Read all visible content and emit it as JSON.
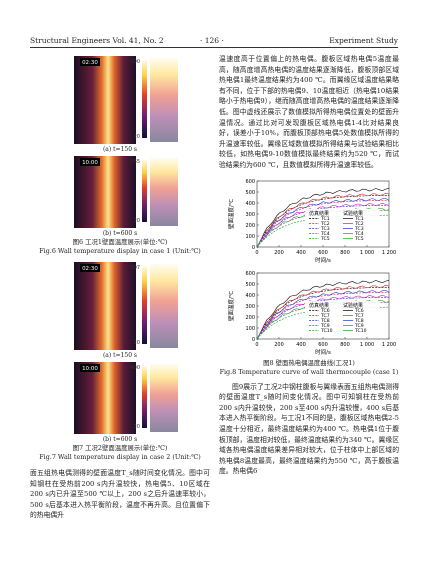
{
  "header": {
    "journal": "Structural Engineers  Vol. 41, No. 2",
    "page": "· 126 ·",
    "section": "Experiment Study"
  },
  "figure6": {
    "panels": [
      {
        "timestamp": "02:30",
        "scale_max": "300",
        "scale_min": "20",
        "caption": "(a) t=150 s"
      },
      {
        "timestamp": "10:00",
        "scale_max": "565",
        "scale_min": "20",
        "caption": "(b) t=600 s"
      }
    ],
    "caption_zh": "图6  工况1壁面温度展示(单位:℃)",
    "caption_en": "Fig.6  Wall temperature display in case 1 (Unit:℃)"
  },
  "figure7": {
    "panels": [
      {
        "timestamp": "02:30",
        "scale_max": "307",
        "scale_min": "20",
        "caption": "(a) t=150 s"
      },
      {
        "timestamp": "10:00",
        "scale_max": "400",
        "scale_min": "20",
        "caption": "(b) t=600 s"
      }
    ],
    "caption_zh": "图7  工况2壁面温度展示(单位:℃)",
    "caption_en": "Fig.7  Wall temperature display in case 2 (Unit:℃)"
  },
  "left_text": "面五组热电偶测得的壁面温度T_s随时间变化情况。图中可知钢柱在受热前200 s内升温较快，热电偶5、10区域在200 s内已升温至500 ℃以上，200 s之后升温速率较小，500 s后基本进入热平衡阶段，温度不再升高。且位置偏下的热电偶升",
  "right_text_top": "温速度高于位置偏上的热电偶。腹板区域热电偶5温度最高，随高度增高热电偶的温度结果逐渐降低，腹板顶部区域热电偶1最终温度结果约为400 ℃。而翼缘区域温度结果略有不同，位于下部的热电偶9、10温度相近（热电偶10结果略小于热电偶9），继而随高度增高热电偶的温度结果逐渐降低。图中虚线还展示了数值模拟所得热电偶位置处的壁面升温情况。通过比对可发现腹板区域热电偶1-4比对结果良好，误差小于10%，而腹板顶部热电偶5处数值模拟所得的升温速率较低。翼缘区域数值模拟所得结果与试验结果相比较低，如热电偶9-10数值模拟最终结果约为520 ℃，而试验结果约为600 ℃，且数值模拟所得升温速率较低。",
  "figure8": {
    "charts": [
      {
        "y_label": "壁面温度/℃",
        "x_label": "时间/s",
        "y_ticks": [
          "0",
          "100",
          "200",
          "300",
          "400",
          "500",
          "600"
        ],
        "x_ticks": [
          "0",
          "200",
          "400",
          "600",
          "800",
          "1 000",
          "1 200"
        ],
        "legend_heads": [
          "仿真结果",
          "试验结果"
        ],
        "legend_items": [
          "TC1",
          "TC2",
          "TC3",
          "TC4",
          "TC5"
        ]
      },
      {
        "y_label": "壁面温度/℃",
        "x_label": "时间/s",
        "y_ticks": [
          "0",
          "100",
          "200",
          "300",
          "400",
          "500",
          "600"
        ],
        "x_ticks": [
          "0",
          "200",
          "400",
          "600",
          "800",
          "1 000",
          "1 200"
        ],
        "legend_heads": [
          "仿真结果",
          "试验结果"
        ],
        "legend_items": [
          "TC6",
          "TC7",
          "TC8",
          "TC9",
          "TC10"
        ]
      }
    ],
    "caption_zh": "图8  壁面热电偶温度曲线(工况1)",
    "caption_en": "Fig.8  Temperature curve of wall thermocouple (case 1)"
  },
  "right_text_bottom": "图9展示了工况2中钢柱腹板与翼缘表面五组热电偶测得的壁面温度T_s随时间变化情况。图中可知钢柱在受热前200 s内升温较快，200 s至400 s内升温较慢，400 s后基本进入热平衡阶段。与工况1不同的是，腹板区域热电偶2-5温度十分相近，最终温度结果约为400 ℃。热电偶1位于腹板顶部，温度相对较低，最终温度结果约为340 ℃。翼缘区域各热电偶温度结果差异相对较大，位于柱体中上部区域的热电偶8温度最高，最终温度结果约为550 ℃，高于腹板温度。热电偶6"
}
